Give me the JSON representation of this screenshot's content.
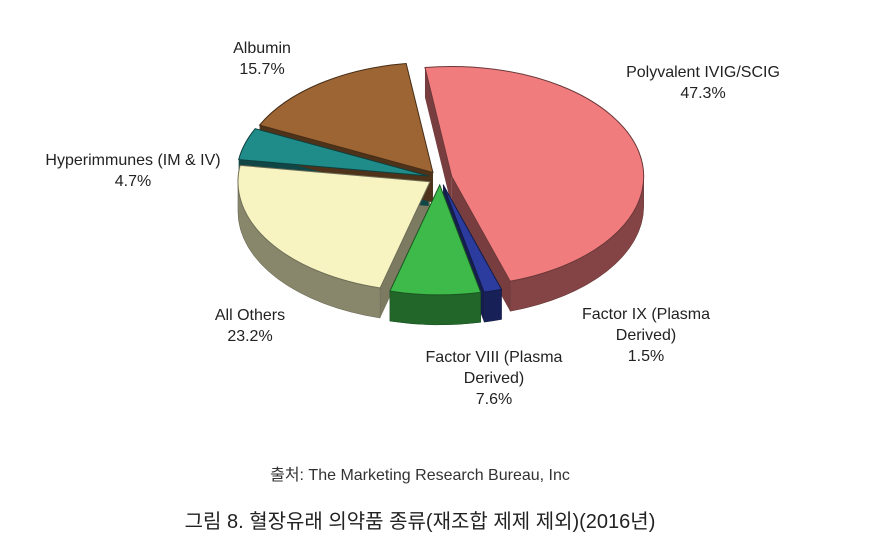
{
  "chart_data": {
    "type": "pie3d",
    "categories": [
      "Polyvalent IVIG/SCIG",
      "Factor IX (Plasma Derived)",
      "Factor VIII (Plasma Derived)",
      "All Others",
      "Hyperimmunes (IM & IV)",
      "Albumin"
    ],
    "values": [
      47.3,
      1.5,
      7.6,
      23.2,
      4.7,
      15.7
    ],
    "value_labels": [
      "47.3%",
      "1.5%",
      "7.6%",
      "23.2%",
      "4.7%",
      "15.7%"
    ],
    "colors": [
      "#f07c7e",
      "#2b3c9e",
      "#3dba4a",
      "#f7f4c2",
      "#1f8c89",
      "#9c6533"
    ],
    "source": "출처: The Marketing Research Bureau, Inc",
    "caption": "그림 8. 혈장유래 의약품 종류(재조합 제제 제외)(2016년)"
  }
}
